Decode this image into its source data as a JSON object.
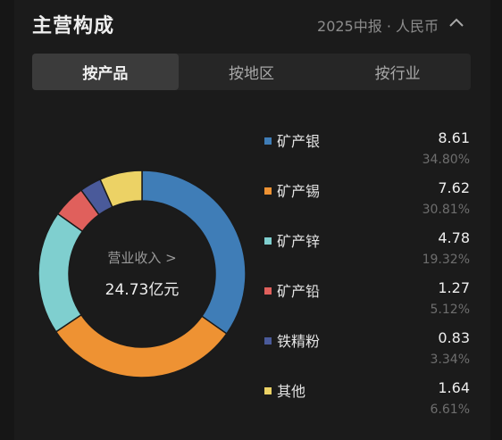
{
  "header": {
    "title": "主营构成",
    "subtitle": "2025中报 · 人民币"
  },
  "tabs": [
    {
      "label": "按产品",
      "active": true
    },
    {
      "label": "按地区",
      "active": false
    },
    {
      "label": "按行业",
      "active": false
    }
  ],
  "donut": {
    "center_label": "营业收入 >",
    "center_value": "24.73亿元"
  },
  "chart_data": {
    "type": "pie",
    "series": [
      {
        "name": "矿产银",
        "value": 8.61,
        "percent": "34.80%",
        "color": "#3f7db7"
      },
      {
        "name": "矿产锡",
        "value": 7.62,
        "percent": "30.81%",
        "color": "#ee9233"
      },
      {
        "name": "矿产锌",
        "value": 4.78,
        "percent": "19.32%",
        "color": "#7fcfcf"
      },
      {
        "name": "矿产铅",
        "value": 1.27,
        "percent": "5.12%",
        "color": "#e0605c"
      },
      {
        "name": "铁精粉",
        "value": 0.83,
        "percent": "3.34%",
        "color": "#4a5a9a"
      },
      {
        "name": "其他",
        "value": 1.64,
        "percent": "6.61%",
        "color": "#ecd265"
      }
    ]
  },
  "legend": [
    {
      "name": "矿产银",
      "value": "8.61",
      "percent": "34.80%"
    },
    {
      "name": "矿产锡",
      "value": "7.62",
      "percent": "30.81%"
    },
    {
      "name": "矿产锌",
      "value": "4.78",
      "percent": "19.32%"
    },
    {
      "name": "矿产铅",
      "value": "1.27",
      "percent": "5.12%"
    },
    {
      "name": "铁精粉",
      "value": "0.83",
      "percent": "3.34%"
    },
    {
      "name": "其他",
      "value": "1.64",
      "percent": "6.61%"
    }
  ]
}
